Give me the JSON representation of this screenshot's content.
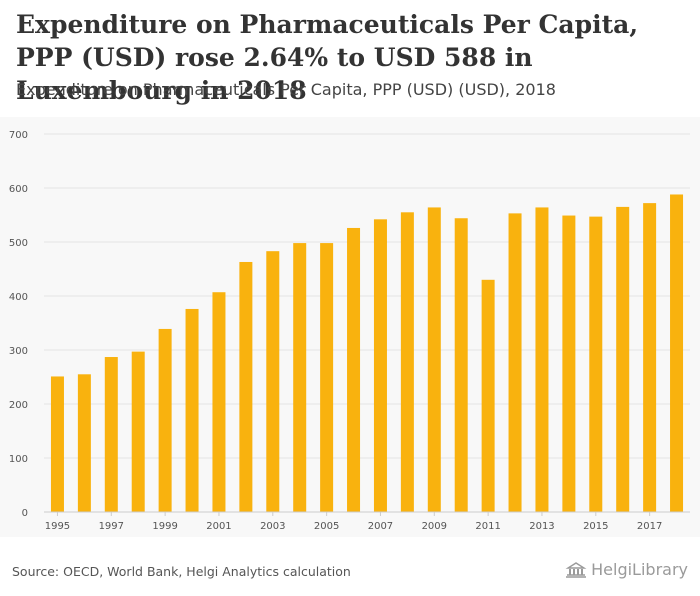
{
  "chart_data": {
    "type": "bar",
    "title": "Expenditure on Pharmaceuticals Per Capita, PPP (USD) rose 2.64% to USD 588 in Luxembourg in 2018",
    "subtitle": "Expenditure on Pharmaceuticals Per Capita, PPP (USD) (USD), 2018",
    "categories": [
      "1995",
      "1996",
      "1997",
      "1998",
      "1999",
      "2000",
      "2001",
      "2002",
      "2003",
      "2004",
      "2005",
      "2006",
      "2007",
      "2008",
      "2009",
      "2010",
      "2011",
      "2012",
      "2013",
      "2014",
      "2015",
      "2016",
      "2017",
      "2018"
    ],
    "x_tick_labels": [
      "1995",
      "1997",
      "1999",
      "2001",
      "2003",
      "2005",
      "2007",
      "2009",
      "2011",
      "2013",
      "2015",
      "2017"
    ],
    "values": [
      251,
      255,
      287,
      297,
      339,
      376,
      407,
      463,
      483,
      498,
      498,
      526,
      542,
      555,
      564,
      544,
      430,
      553,
      564,
      549,
      547,
      565,
      572,
      588
    ],
    "ylim": [
      0,
      700
    ],
    "y_ticks": [
      0,
      100,
      200,
      300,
      400,
      500,
      600,
      700
    ],
    "grid": true,
    "bar_color": "#f9b20e"
  },
  "footer": {
    "source": "Source: OECD, World Bank, Helgi Analytics calculation",
    "logo_text": "HelgiLibrary"
  },
  "icons": {
    "logo": "library-building-icon"
  }
}
